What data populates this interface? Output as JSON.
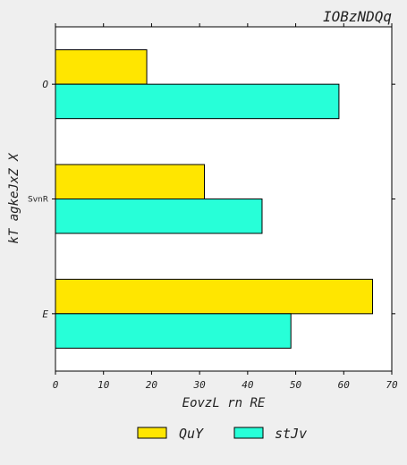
{
  "chart_data": {
    "type": "bar",
    "orientation": "horizontal",
    "title": "IOBzNDQq",
    "xlabel": "EovzL rn RE",
    "ylabel": "kT agkeJxZ X",
    "categories": [
      "O",
      "SvnR",
      "E"
    ],
    "series": [
      {
        "name": "QuY",
        "color": "#ffe600",
        "values": [
          19,
          31,
          66
        ]
      },
      {
        "name": "stJv",
        "color": "#27ffd8",
        "values": [
          59,
          43,
          49
        ]
      }
    ],
    "xlim": [
      0,
      70
    ],
    "xticks": [
      0,
      10,
      20,
      30,
      40,
      50,
      60,
      70
    ],
    "grid": false,
    "legend": "bottom-center"
  }
}
